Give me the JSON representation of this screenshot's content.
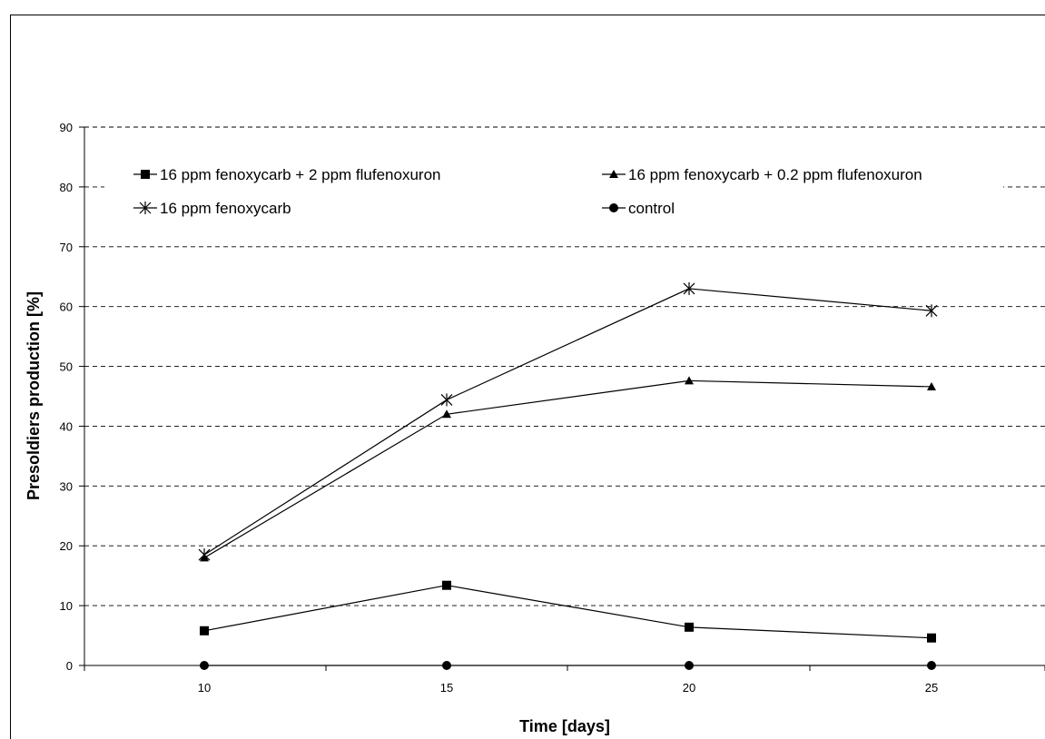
{
  "chart_data": {
    "type": "line",
    "title": "",
    "xlabel": "Time [days]",
    "ylabel": "Presoldiers production [%]",
    "categories": [
      "10",
      "15",
      "20",
      "25"
    ],
    "ylim": [
      0,
      90
    ],
    "yticks": [
      0,
      10,
      20,
      30,
      40,
      50,
      60,
      70,
      80,
      90
    ],
    "grid": "horizontal dashed",
    "legend_position": "top",
    "series": [
      {
        "name": "16 ppm fenoxycarb + 2 ppm flufenoxuron",
        "marker": "square",
        "values": [
          5.8,
          13.4,
          6.4,
          4.6
        ]
      },
      {
        "name": "16 ppm fenoxycarb +  0.2 ppm flufenoxuron",
        "marker": "triangle",
        "values": [
          18.0,
          42.0,
          47.6,
          46.6
        ]
      },
      {
        "name": "16 ppm fenoxycarb",
        "marker": "asterisk",
        "values": [
          18.5,
          44.4,
          63.0,
          59.3
        ]
      },
      {
        "name": "control",
        "marker": "circle",
        "values": [
          0,
          0,
          0,
          0
        ]
      }
    ]
  }
}
